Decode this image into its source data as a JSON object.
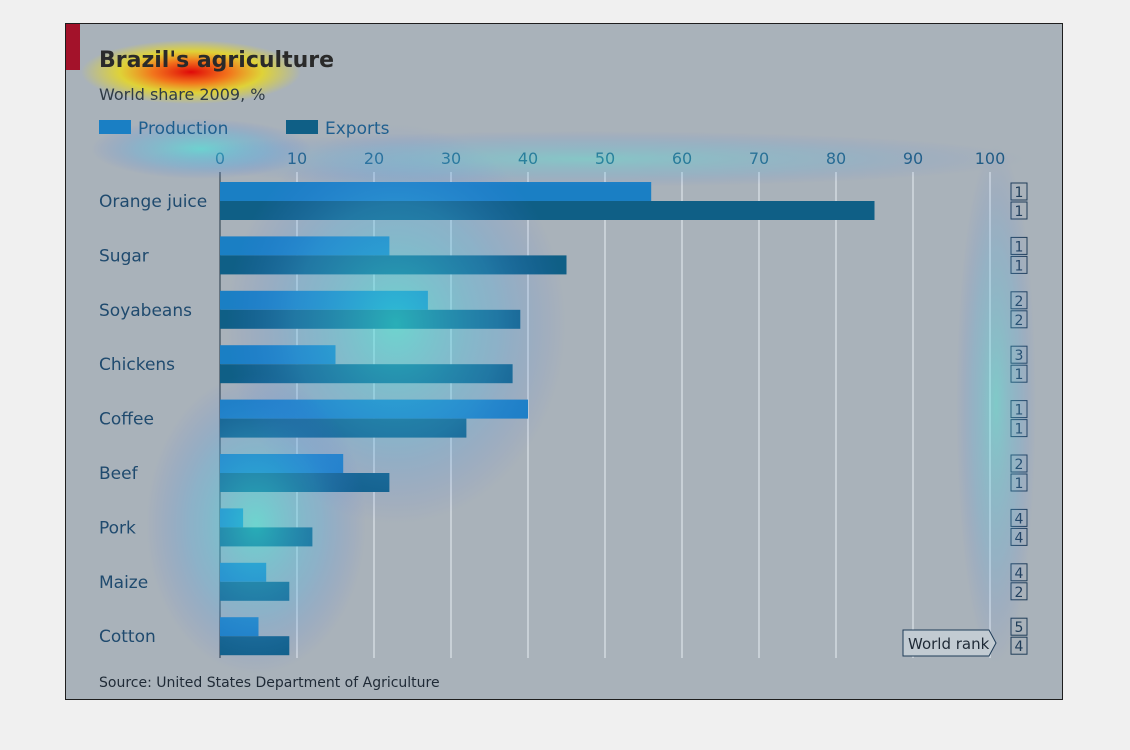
{
  "chart_data": {
    "type": "bar",
    "orientation": "horizontal",
    "title": "Brazil's agriculture",
    "subtitle": "World share 2009, %",
    "xlim": [
      0,
      100
    ],
    "xticks": [
      "0",
      "10",
      "20",
      "30",
      "40",
      "50",
      "60",
      "70",
      "80",
      "90",
      "100"
    ],
    "grid": true,
    "legend_position": "top-left",
    "categories": [
      "Orange juice",
      "Sugar",
      "Soyabeans",
      "Chickens",
      "Coffee",
      "Beef",
      "Pork",
      "Maize",
      "Cotton"
    ],
    "series": [
      {
        "name": "Production",
        "color": "#1a7fc4",
        "values": [
          56,
          22,
          27,
          15,
          40,
          16,
          3,
          6,
          5
        ]
      },
      {
        "name": "Exports",
        "color": "#0f5f86",
        "values": [
          85,
          45,
          39,
          38,
          32,
          22,
          12,
          9,
          9
        ]
      }
    ],
    "world_rank_label": "World rank",
    "world_rank": {
      "production": [
        "1",
        "1",
        "2",
        "3",
        "1",
        "2",
        "4",
        "4",
        "5"
      ],
      "exports": [
        "1",
        "1",
        "2",
        "1",
        "1",
        "1",
        "4",
        "2",
        "4"
      ]
    },
    "source": "Source: United States Department of Agriculture",
    "accent_color": "#a3122a",
    "background_color": "#a9b2ba"
  }
}
